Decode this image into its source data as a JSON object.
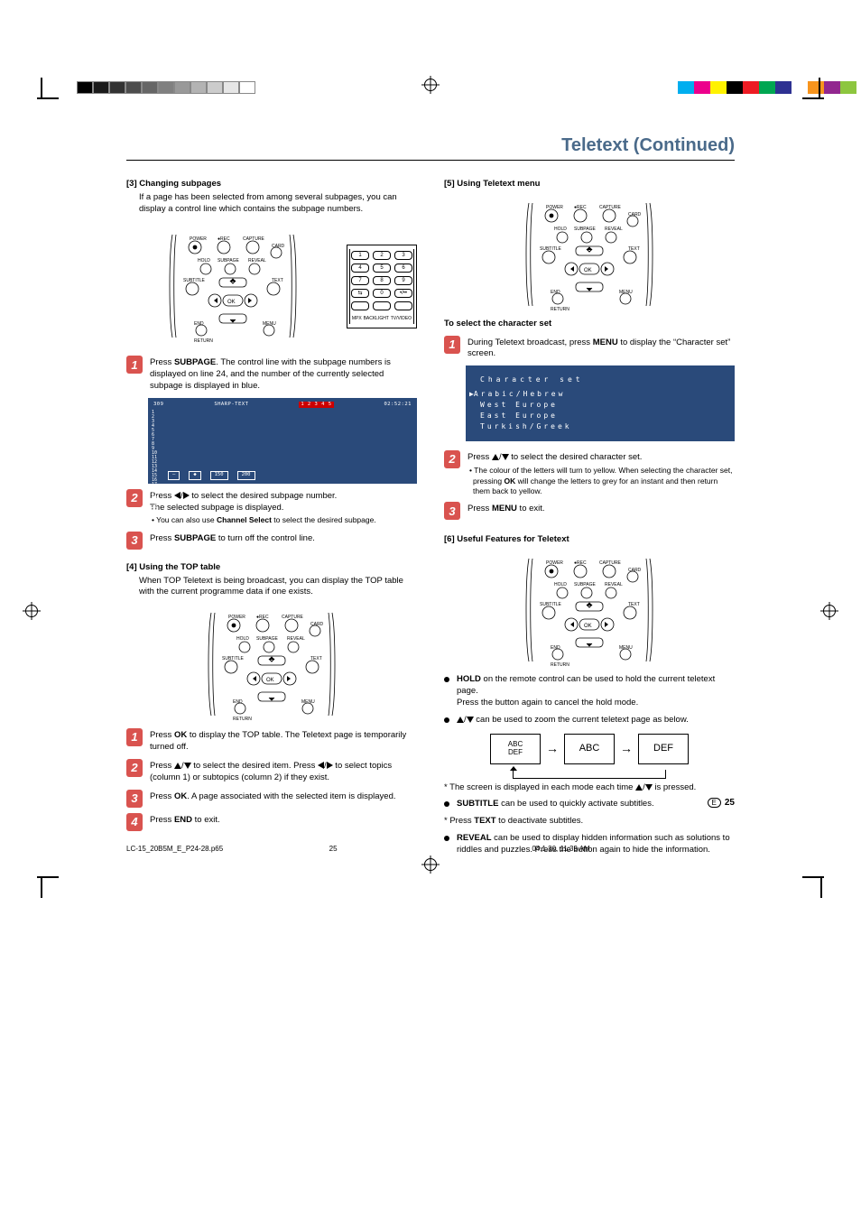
{
  "page_title": "Teletext (Continued)",
  "page_number": "25",
  "page_lang_marker": "E",
  "footer": {
    "file": "LC-15_20B5M_E_P24-28.p65",
    "page": "25",
    "date": "04.1.30, 11:39 AM"
  },
  "color_bars_grey": [
    "#000000",
    "#1a1a1a",
    "#333333",
    "#4d4d4d",
    "#666666",
    "#808080",
    "#999999",
    "#b3b3b3",
    "#cccccc",
    "#e6e6e6",
    "#ffffff"
  ],
  "color_bars_color": [
    "#00aeef",
    "#ec008c",
    "#fff200",
    "#000000",
    "#ed1c24",
    "#00a651",
    "#2e3192",
    "#ffffff",
    "#f7941d",
    "#92278f",
    "#8dc63f"
  ],
  "remote_labels": {
    "power": "POWER",
    "rec": "●REC",
    "capture": "CAPTURE",
    "card": "CARD",
    "hold": "HOLD",
    "subpage": "SUBPAGE",
    "reveal": "REVEAL",
    "subtitle": "SUBTITLE",
    "text": "TEXT",
    "end": "END",
    "menu": "MENU",
    "return": "RETURN",
    "ok": "OK"
  },
  "numpad_bottom_labels": [
    "MPX",
    "BACKLIGHT",
    "TV/VIDEO"
  ],
  "left_col": {
    "s3": {
      "head": "[3] Changing subpages",
      "intro": "If a page has been selected from among several subpages, you can display a control line which contains the subpage numbers.",
      "steps": [
        {
          "n": "1",
          "text_pre": "Press ",
          "bold1": "SUBPAGE",
          "text_post": ". The control line with the subpage numbers is displayed on line 24, and the number of the currently selected subpage is displayed in blue."
        },
        {
          "n": "2",
          "text_pre": "Press ",
          "arrows": "lr",
          "text_mid": " to select the desired subpage number.",
          "line2": "The selected subpage is displayed.",
          "sub_pre": "• You can also use ",
          "sub_bold": "Channel Select",
          "sub_post": " to select the desired subpage."
        },
        {
          "n": "3",
          "text_pre": "Press ",
          "bold1": "SUBPAGE",
          "text_post": " to turn off the control line."
        }
      ],
      "screen": {
        "head_left": "309",
        "head_mid": "SHARP-TEXT",
        "head_box": "1 2 3 4 5",
        "head_right": "02:52:21",
        "rows": [
          "1",
          "2",
          "3",
          "4",
          "5",
          "6",
          "7",
          "8",
          "9",
          "10",
          "11",
          "12",
          "13",
          "14",
          "15",
          "16",
          "17",
          "18",
          "19",
          "20",
          "21",
          "22",
          "23"
        ],
        "bottom_tabs": [
          "–",
          "◆",
          "150",
          "200"
        ]
      }
    },
    "s4": {
      "head": "[4] Using the TOP table",
      "intro": "When TOP Teletext is being broadcast, you can display the TOP table with the current programme data if one exists.",
      "steps": [
        {
          "n": "1",
          "text_pre": "Press ",
          "bold1": "OK",
          "text_post": " to display the TOP table. The Teletext page is temporarily turned off."
        },
        {
          "n": "2",
          "text_pre": "Press ",
          "arrows": "ud",
          "text_mid": " to select the desired item. Press ",
          "arrows2": "lr",
          "text_post": " to select topics (column 1) or subtopics (column 2) if they exist."
        },
        {
          "n": "3",
          "text_pre": "Press ",
          "bold1": "OK",
          "text_post": ". A page associated with the selected item is displayed."
        },
        {
          "n": "4",
          "text_pre": "Press ",
          "bold1": "END",
          "text_post": " to exit."
        }
      ]
    }
  },
  "right_col": {
    "s5": {
      "head": "[5] Using Teletext menu",
      "sub_head": "To select the character set",
      "steps": [
        {
          "n": "1",
          "text_pre": "During Teletext broadcast, press ",
          "bold1": "MENU",
          "text_post": " to display the “Character set” screen."
        },
        {
          "n": "2",
          "text_pre": "Press ",
          "arrows": "ud",
          "text_post": " to select the desired character set.",
          "sub": "• The colour of the letters will turn to yellow. When selecting the character set, pressing ",
          "sub_bold": "OK",
          "sub_post": " will change the letters to grey for an instant and then return them back to yellow."
        },
        {
          "n": "3",
          "text_pre": "Press ",
          "bold1": "MENU",
          "text_post": " to exit."
        }
      ],
      "char_screen": {
        "title": "Character set",
        "items": [
          "Arabic/Hebrew",
          "West Europe",
          "East Europe",
          "Turkish/Greek"
        ]
      }
    },
    "s6": {
      "head": "[6] Useful Features for Teletext",
      "bullets": [
        {
          "bold": "HOLD",
          "text": " on the remote control can be used to hold the current teletext page.",
          "line2": "Press the button again to cancel the hold mode."
        },
        {
          "arrows": "ud",
          "text": " can be used to zoom the current teletext page as below."
        }
      ],
      "zoom_boxes": [
        "ABC\nDEF",
        "ABC",
        "DEF"
      ],
      "note1_pre": "* The screen is displayed in each mode each time ",
      "note1_arrows": "ud",
      "note1_post": " is pressed.",
      "bullet3_bold": "SUBTITLE",
      "bullet3_text": " can be used to quickly activate subtitles.",
      "note2_pre": "* Press ",
      "note2_bold": "TEXT",
      "note2_post": " to deactivate subtitles.",
      "bullet4_bold": "REVEAL",
      "bullet4_text": " can be used to display hidden information such as solutions to riddles and puzzles. Press the button again to hide the information."
    }
  }
}
